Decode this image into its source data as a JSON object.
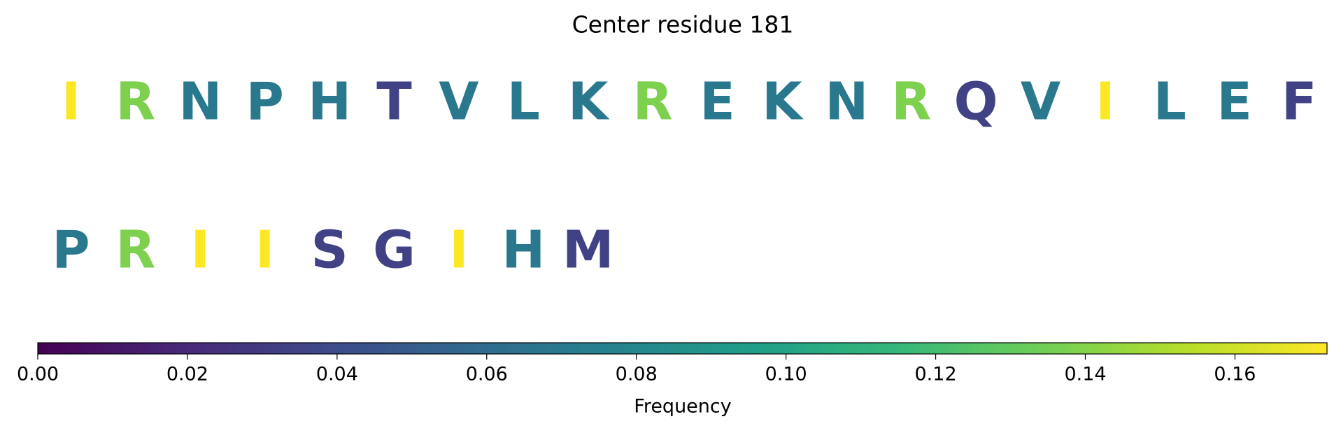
{
  "chart_data": {
    "type": "sequence",
    "title": "Center residue 181",
    "letters": [
      "I",
      "R",
      "N",
      "P",
      "H",
      "T",
      "V",
      "L",
      "K",
      "R",
      "E",
      "K",
      "N",
      "R",
      "Q",
      "V",
      "I",
      "L",
      "E",
      "F",
      "P",
      "R",
      "I",
      "I",
      "S",
      "G",
      "I",
      "H",
      "M"
    ],
    "values": [
      0.172,
      0.138,
      0.069,
      0.069,
      0.069,
      0.034,
      0.069,
      0.069,
      0.069,
      0.138,
      0.069,
      0.069,
      0.069,
      0.138,
      0.034,
      0.069,
      0.172,
      0.069,
      0.069,
      0.034,
      0.069,
      0.138,
      0.172,
      0.172,
      0.034,
      0.034,
      0.172,
      0.069,
      0.034
    ],
    "colormap": [
      "#440154",
      "#482878",
      "#3e4989",
      "#31688e",
      "#26828e",
      "#1f9e89",
      "#35b779",
      "#6ece58",
      "#b5de2b",
      "#fde725"
    ],
    "xlim": [
      0,
      0.1723
    ],
    "xticks": [
      {
        "value": 0,
        "label": "0.00"
      },
      {
        "value": 0.02,
        "label": "0.02"
      },
      {
        "value": 0.04,
        "label": "0.04"
      },
      {
        "value": 0.06,
        "label": "0.06"
      },
      {
        "value": 0.08,
        "label": "0.08"
      },
      {
        "value": 0.1,
        "label": "0.10"
      },
      {
        "value": 0.12,
        "label": "0.12"
      },
      {
        "value": 0.14,
        "label": "0.14"
      },
      {
        "value": 0.16,
        "label": "0.16"
      }
    ],
    "xlabel": "Frequency"
  }
}
